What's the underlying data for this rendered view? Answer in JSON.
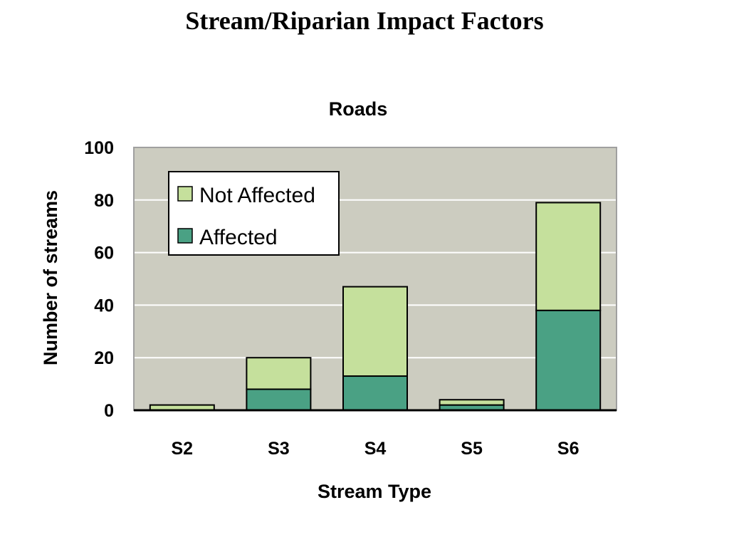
{
  "page": {
    "title": "Stream/Riparian Impact Factors"
  },
  "colors": {
    "plot_background": "#ccccc0",
    "gridline": "#ffffff",
    "plot_border": "#a0a0a0",
    "not_affected": "#c5e09c",
    "affected": "#4aa184",
    "bar_outline": "#000000"
  },
  "chart_data": {
    "type": "bar",
    "stacked": true,
    "title": "Roads",
    "xlabel": "Stream Type",
    "ylabel": "Number of streams",
    "ylim": [
      0,
      100
    ],
    "yticks": [
      0,
      20,
      40,
      60,
      80,
      100
    ],
    "grid": true,
    "legend_position": "top-left",
    "categories": [
      "S2",
      "S3",
      "S4",
      "S5",
      "S6"
    ],
    "series": [
      {
        "name": "Affected",
        "color": "#4aa184",
        "values": [
          0,
          8,
          13,
          2,
          38
        ]
      },
      {
        "name": "Not Affected",
        "color": "#c5e09c",
        "values": [
          2,
          12,
          34,
          2,
          41
        ]
      }
    ],
    "legend": [
      {
        "name": "Not Affected",
        "color": "#c5e09c"
      },
      {
        "name": "Affected",
        "color": "#4aa184"
      }
    ]
  }
}
